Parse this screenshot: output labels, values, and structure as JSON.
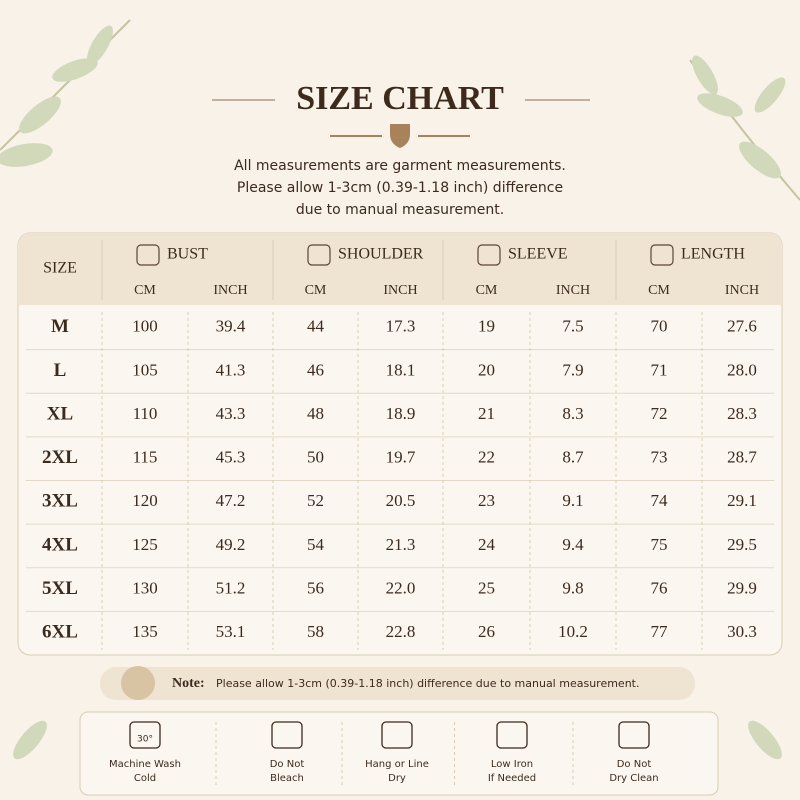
{
  "header": {
    "title": "SIZE CHART",
    "subtitle": [
      "All measurements are garment measurements.",
      "Please allow 1-3cm (0.39-1.18 inch) difference",
      "due to manual measurement."
    ]
  },
  "table": {
    "size_header": "SIZE",
    "groups": [
      {
        "name": "BUST",
        "units": [
          "CM",
          "INCH"
        ]
      },
      {
        "name": "SHOULDER",
        "units": [
          "CM",
          "INCH"
        ]
      },
      {
        "name": "SLEEVE",
        "units": [
          "CM",
          "INCH"
        ]
      },
      {
        "name": "LENGTH",
        "units": [
          "CM",
          "INCH"
        ]
      }
    ],
    "rows": [
      [
        "M",
        "100",
        "39.4",
        "44",
        "17.3",
        "19",
        "7.5",
        "70",
        "27.6"
      ],
      [
        "L",
        "105",
        "41.3",
        "46",
        "18.1",
        "20",
        "7.9",
        "71",
        "28.0"
      ],
      [
        "XL",
        "110",
        "43.3",
        "48",
        "18.9",
        "21",
        "8.3",
        "72",
        "28.3"
      ],
      [
        "2XL",
        "115",
        "45.3",
        "50",
        "19.7",
        "22",
        "8.7",
        "73",
        "28.7"
      ],
      [
        "3XL",
        "120",
        "47.2",
        "52",
        "20.5",
        "23",
        "9.1",
        "74",
        "29.1"
      ],
      [
        "4XL",
        "125",
        "49.2",
        "54",
        "21.3",
        "24",
        "9.4",
        "75",
        "29.5"
      ],
      [
        "5XL",
        "130",
        "51.2",
        "56",
        "22.0",
        "25",
        "9.8",
        "76",
        "29.9"
      ],
      [
        "6XL",
        "135",
        "53.1",
        "58",
        "22.8",
        "26",
        "10.2",
        "77",
        "30.3"
      ]
    ]
  },
  "note": {
    "label": "Note:",
    "text": "Please allow 1-3cm (0.39-1.18 inch) difference due to manual measurement."
  },
  "care": [
    {
      "icon_text": "30°",
      "lines": [
        "Machine Wash",
        "Cold"
      ]
    },
    {
      "lines": [
        "Do Not",
        "Bleach"
      ]
    },
    {
      "lines": [
        "Hang or Line",
        "Dry"
      ]
    },
    {
      "lines": [
        "Low Iron",
        "If Needed"
      ]
    },
    {
      "lines": [
        "Do Not",
        "Dry Clean"
      ]
    }
  ]
}
